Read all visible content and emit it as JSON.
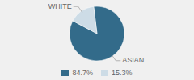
{
  "chart_data": {
    "type": "pie",
    "categories": [
      "ASIAN",
      "WHITE"
    ],
    "values": [
      84.7,
      15.3
    ],
    "value_labels": [
      "84.7%",
      "15.3%"
    ],
    "colors": [
      "#336b8a",
      "#cddce6"
    ],
    "legend": "bottom"
  }
}
